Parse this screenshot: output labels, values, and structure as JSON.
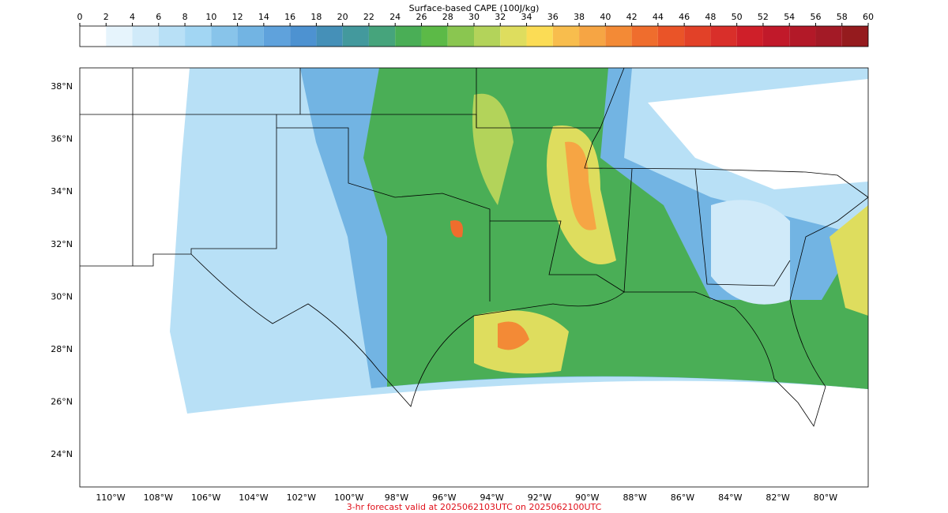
{
  "colorbar": {
    "title": "Surface-based CAPE (100J/kg)",
    "ticks": [
      0,
      2,
      4,
      6,
      8,
      10,
      12,
      14,
      16,
      18,
      20,
      22,
      24,
      26,
      28,
      30,
      32,
      34,
      36,
      38,
      40,
      42,
      44,
      46,
      48,
      50,
      52,
      54,
      56,
      58,
      60
    ],
    "colors": [
      "#ffffff",
      "#e6f4fc",
      "#d0eaf9",
      "#b8e0f6",
      "#a2d6f3",
      "#88c4ea",
      "#72b4e3",
      "#5fa2dc",
      "#4d92d1",
      "#4590b8",
      "#43999d",
      "#46a47c",
      "#4aae56",
      "#5cba47",
      "#8ac650",
      "#b3d35a",
      "#dedd5e",
      "#fbdc55",
      "#f8bd4d",
      "#f6a544",
      "#f38a36",
      "#ef6d2d",
      "#ea5428",
      "#e24128",
      "#d92f2a",
      "#cf1f29",
      "#c1192a",
      "#b31928",
      "#a31a26",
      "#951b1e"
    ]
  },
  "map": {
    "lat_labels": [
      "38°N",
      "36°N",
      "34°N",
      "32°N",
      "30°N",
      "28°N",
      "26°N",
      "24°N"
    ],
    "lon_labels": [
      "110°W",
      "108°W",
      "106°W",
      "104°W",
      "102°W",
      "100°W",
      "98°W",
      "96°W",
      "94°W",
      "92°W",
      "90°W",
      "88°W",
      "86°W",
      "84°W",
      "82°W",
      "80°W"
    ]
  },
  "footer": "3-hr forecast valid at 2025062103UTC on 2025062100UTC"
}
